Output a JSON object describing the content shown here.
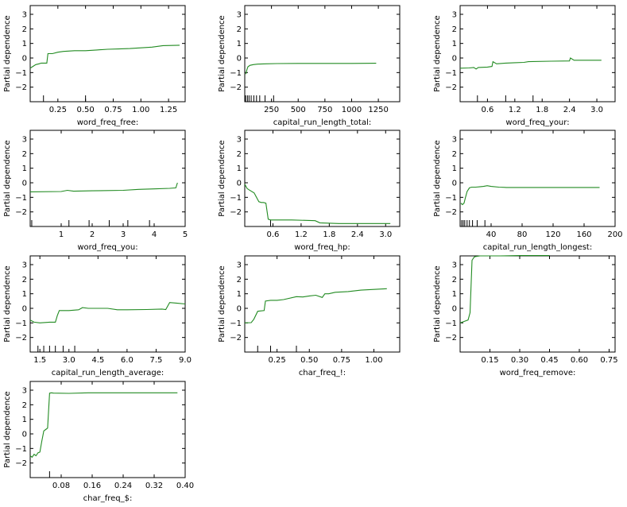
{
  "figure": {
    "ylabel": "Partial dependence",
    "series_color": "#228b22"
  },
  "chart_data": [
    {
      "type": "line",
      "xlabel": "word_freq_free:",
      "ylabel": "Partial dependence",
      "xlim": [
        0.0,
        1.4
      ],
      "ylim": [
        -3,
        3.6
      ],
      "xticks": [
        0.25,
        0.5,
        0.75,
        1.0,
        1.25
      ],
      "xtick_labels": [
        "0.25",
        "0.50",
        "0.75",
        "1.00",
        "1.25"
      ],
      "yticks": [
        -2,
        -1,
        0,
        1,
        2,
        3
      ],
      "deciles": [
        0.0,
        0.12,
        0.5
      ],
      "x": [
        0.0,
        0.02,
        0.05,
        0.08,
        0.1,
        0.15,
        0.16,
        0.2,
        0.25,
        0.3,
        0.4,
        0.5,
        0.6,
        0.7,
        0.8,
        0.9,
        1.0,
        1.1,
        1.2,
        1.35
      ],
      "y": [
        -0.7,
        -0.6,
        -0.45,
        -0.4,
        -0.35,
        -0.35,
        0.3,
        0.3,
        0.4,
        0.45,
        0.5,
        0.5,
        0.55,
        0.6,
        0.62,
        0.65,
        0.7,
        0.75,
        0.85,
        0.88
      ]
    },
    {
      "type": "line",
      "xlabel": "capital_run_length_total:",
      "ylabel": "Partial dependence",
      "xlim": [
        0,
        1450
      ],
      "ylim": [
        -3,
        3.6
      ],
      "xticks": [
        250,
        500,
        750,
        1000,
        1250
      ],
      "xtick_labels": [
        "250",
        "500",
        "750",
        "1000",
        "1250"
      ],
      "yticks": [
        -2,
        -1,
        0,
        1,
        2,
        3
      ],
      "deciles": [
        8,
        25,
        40,
        60,
        85,
        110,
        140,
        190,
        270
      ],
      "x": [
        10,
        20,
        30,
        50,
        80,
        120,
        200,
        300,
        500,
        750,
        1000,
        1230
      ],
      "y": [
        -1.1,
        -0.8,
        -0.6,
        -0.5,
        -0.45,
        -0.42,
        -0.4,
        -0.38,
        -0.37,
        -0.37,
        -0.37,
        -0.36
      ]
    },
    {
      "type": "line",
      "xlabel": "word_freq_your:",
      "ylabel": "Partial dependence",
      "xlim": [
        0.0,
        3.4
      ],
      "ylim": [
        -3,
        3.6
      ],
      "xticks": [
        0.6,
        1.2,
        1.8,
        2.4,
        3.0
      ],
      "xtick_labels": [
        "0.6",
        "1.2",
        "1.8",
        "2.4",
        "3.0"
      ],
      "yticks": [
        -2,
        -1,
        0,
        1,
        2,
        3
      ],
      "deciles": [
        0.0,
        0.38,
        1.0,
        1.6
      ],
      "x": [
        0.0,
        0.2,
        0.3,
        0.35,
        0.4,
        0.6,
        0.7,
        0.72,
        0.8,
        1.0,
        1.2,
        1.4,
        1.5,
        2.0,
        2.4,
        2.42,
        2.5,
        2.8,
        3.1
      ],
      "y": [
        -0.7,
        -0.68,
        -0.65,
        -0.75,
        -0.65,
        -0.62,
        -0.58,
        -0.25,
        -0.4,
        -0.35,
        -0.32,
        -0.3,
        -0.25,
        -0.22,
        -0.2,
        0.0,
        -0.15,
        -0.15,
        -0.15
      ]
    },
    {
      "type": "line",
      "xlabel": "word_freq_you:",
      "ylabel": "Partial dependence",
      "xlim": [
        0.0,
        5.0
      ],
      "ylim": [
        -3,
        3.6
      ],
      "xticks": [
        1,
        2,
        3,
        4,
        5
      ],
      "xtick_labels": [
        "1",
        "2",
        "3",
        "4",
        "5"
      ],
      "yticks": [
        -2,
        -1,
        0,
        1,
        2,
        3
      ],
      "deciles": [
        0.05,
        1.25,
        1.9,
        2.55,
        3.15,
        3.85
      ],
      "x": [
        0.0,
        1.0,
        1.2,
        1.4,
        2.0,
        3.0,
        3.5,
        4.0,
        4.5,
        4.7,
        4.75
      ],
      "y": [
        -0.62,
        -0.6,
        -0.52,
        -0.58,
        -0.55,
        -0.52,
        -0.45,
        -0.42,
        -0.38,
        -0.35,
        0.0
      ]
    },
    {
      "type": "line",
      "xlabel": "word_freq_hp:",
      "ylabel": "Partial dependence",
      "xlim": [
        0.0,
        3.3
      ],
      "ylim": [
        -3,
        3.6
      ],
      "xticks": [
        0.6,
        1.2,
        1.8,
        2.4,
        3.0
      ],
      "xtick_labels": [
        "0.6",
        "1.2",
        "1.8",
        "2.4",
        "3.0"
      ],
      "yticks": [
        -2,
        -1,
        0,
        1,
        2,
        3
      ],
      "deciles": [
        0.0,
        0.55
      ],
      "x": [
        0.0,
        0.05,
        0.1,
        0.2,
        0.3,
        0.35,
        0.4,
        0.45,
        0.5,
        0.55,
        1.0,
        1.5,
        1.6,
        2.0,
        3.1
      ],
      "y": [
        -0.1,
        -0.4,
        -0.5,
        -0.7,
        -1.3,
        -1.35,
        -1.35,
        -1.4,
        -2.5,
        -2.55,
        -2.55,
        -2.6,
        -2.75,
        -2.8,
        -2.8
      ]
    },
    {
      "type": "line",
      "xlabel": "capital_run_length_longest:",
      "ylabel": "Partial dependence",
      "xlim": [
        0,
        200
      ],
      "ylim": [
        -3,
        3.6
      ],
      "xticks": [
        40,
        80,
        120,
        160,
        200
      ],
      "xtick_labels": [
        "40",
        "80",
        "120",
        "160",
        "200"
      ],
      "yticks": [
        -2,
        -1,
        0,
        1,
        2,
        3
      ],
      "deciles": [
        2,
        4,
        6,
        9,
        12,
        16,
        22,
        32
      ],
      "x": [
        1,
        3,
        5,
        7,
        9,
        12,
        15,
        20,
        25,
        30,
        35,
        40,
        50,
        60,
        80,
        100,
        140,
        180
      ],
      "y": [
        -1.4,
        -1.5,
        -1.4,
        -1.0,
        -0.6,
        -0.35,
        -0.3,
        -0.3,
        -0.28,
        -0.25,
        -0.2,
        -0.25,
        -0.3,
        -0.32,
        -0.32,
        -0.32,
        -0.32,
        -0.32
      ]
    },
    {
      "type": "line",
      "xlabel": "capital_run_length_average:",
      "ylabel": "Partial dependence",
      "xlim": [
        1.0,
        9.0
      ],
      "ylim": [
        -3,
        3.6
      ],
      "xticks": [
        1.5,
        3.0,
        4.5,
        6.0,
        7.5,
        9.0
      ],
      "xtick_labels": [
        "1.5",
        "3.0",
        "4.5",
        "6.0",
        "7.5",
        "9.0"
      ],
      "yticks": [
        -2,
        -1,
        0,
        1,
        2,
        3
      ],
      "deciles": [
        1.0,
        1.4,
        1.7,
        2.0,
        2.3,
        2.7,
        3.3
      ],
      "x": [
        1.0,
        1.2,
        1.5,
        2.0,
        2.3,
        2.4,
        2.5,
        3.0,
        3.5,
        3.7,
        4.0,
        5.0,
        5.5,
        6.0,
        7.0,
        7.8,
        8.0,
        8.2,
        8.6,
        9.0
      ],
      "y": [
        -0.8,
        -0.95,
        -1.0,
        -0.95,
        -0.95,
        -0.5,
        -0.15,
        -0.15,
        -0.1,
        0.05,
        0.0,
        0.0,
        -0.1,
        -0.1,
        -0.08,
        -0.05,
        -0.08,
        0.4,
        0.35,
        0.3
      ]
    },
    {
      "type": "line",
      "xlabel": "char_freq_!:",
      "ylabel": "Partial dependence",
      "xlim": [
        0.0,
        1.2
      ],
      "ylim": [
        -3,
        3.6
      ],
      "xticks": [
        0.25,
        0.5,
        0.75,
        1.0
      ],
      "xtick_labels": [
        "0.25",
        "0.50",
        "0.75",
        "1.00"
      ],
      "yticks": [
        -2,
        -1,
        0,
        1,
        2,
        3
      ],
      "deciles": [
        0.0,
        0.1,
        0.2,
        0.4
      ],
      "x": [
        0.0,
        0.05,
        0.07,
        0.1,
        0.15,
        0.16,
        0.2,
        0.25,
        0.3,
        0.4,
        0.45,
        0.5,
        0.55,
        0.6,
        0.62,
        0.65,
        0.7,
        0.8,
        0.9,
        1.0,
        1.1
      ],
      "y": [
        -1.0,
        -0.98,
        -0.75,
        -0.2,
        -0.15,
        0.5,
        0.55,
        0.55,
        0.6,
        0.8,
        0.78,
        0.85,
        0.9,
        0.75,
        1.0,
        1.0,
        1.1,
        1.15,
        1.25,
        1.3,
        1.35
      ]
    },
    {
      "type": "line",
      "xlabel": "word_freq_remove:",
      "ylabel": "Partial dependence",
      "xlim": [
        0.0,
        0.78
      ],
      "ylim": [
        -3,
        3.6
      ],
      "xticks": [
        0.15,
        0.3,
        0.45,
        0.6,
        0.75
      ],
      "xtick_labels": [
        "0.15",
        "0.30",
        "0.45",
        "0.60",
        "0.75"
      ],
      "yticks": [
        -2,
        -1,
        0,
        1,
        2,
        3
      ],
      "deciles": [
        0.0
      ],
      "x": [
        0.0,
        0.02,
        0.04,
        0.05,
        0.06,
        0.07,
        0.075,
        0.1,
        0.2,
        0.3,
        0.4,
        0.45
      ],
      "y": [
        -1.0,
        -0.9,
        -0.8,
        -0.3,
        3.3,
        3.5,
        3.55,
        3.6,
        3.6,
        3.62,
        3.62,
        3.62
      ]
    },
    {
      "type": "line",
      "xlabel": "char_freq_$:",
      "ylabel": "Partial dependence",
      "xlim": [
        0.0,
        0.4
      ],
      "ylim": [
        -3,
        3.6
      ],
      "xticks": [
        0.08,
        0.16,
        0.24,
        0.32,
        0.4
      ],
      "xtick_labels": [
        "0.08",
        "0.16",
        "0.24",
        "0.32",
        "0.40"
      ],
      "yticks": [
        -2,
        -1,
        0,
        1,
        2,
        3
      ],
      "deciles": [
        0.0,
        0.05
      ],
      "x": [
        0.0,
        0.005,
        0.01,
        0.015,
        0.02,
        0.025,
        0.03,
        0.035,
        0.04,
        0.045,
        0.05,
        0.055,
        0.06,
        0.1,
        0.15,
        0.2,
        0.3,
        0.38
      ],
      "y": [
        -1.5,
        -1.6,
        -1.4,
        -1.5,
        -1.3,
        -1.25,
        -0.5,
        0.2,
        0.3,
        0.4,
        2.8,
        2.82,
        2.8,
        2.78,
        2.82,
        2.82,
        2.82,
        2.82
      ]
    }
  ]
}
